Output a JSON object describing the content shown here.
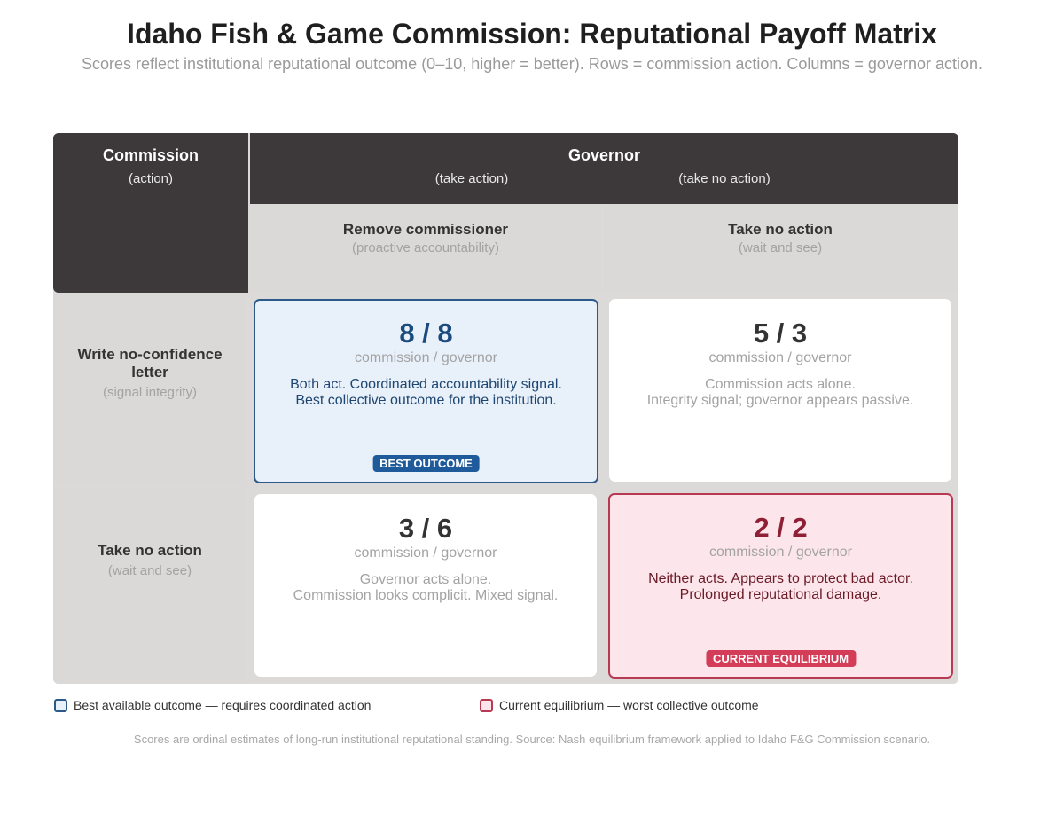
{
  "title": "Idaho Fish & Game Commission: Reputational Payoff Matrix",
  "subtitle": "Scores reflect institutional reputational outcome (0–10, higher = better). Rows = commission action. Columns = governor action.",
  "header": {
    "commission_title": "Commission",
    "commission_sub": "(action)",
    "governor_title": "Governor",
    "governor_sub_left": "(take action)",
    "governor_sub_right": "(take no action)"
  },
  "columns": [
    {
      "label": "Remove commissioner",
      "sub": "(proactive accountability)"
    },
    {
      "label": "Take no action",
      "sub": "(wait and see)"
    }
  ],
  "rows": [
    {
      "label": "Write no-confidence letter",
      "sub": "(signal integrity)"
    },
    {
      "label": "Take no action",
      "sub": "(wait and see)"
    }
  ],
  "cells": [
    {
      "score": "8 / 8",
      "label": "commission / governor",
      "desc1": "Both act. Coordinated accountability signal.",
      "desc2": "Best collective outcome for the institution.",
      "badge": "BEST OUTCOME",
      "commission": 8,
      "governor": 8
    },
    {
      "score": "5 / 3",
      "label": "commission / governor",
      "desc1": "Commission acts alone.",
      "desc2": "Integrity signal; governor appears passive.",
      "commission": 5,
      "governor": 3
    },
    {
      "score": "3 / 6",
      "label": "commission / governor",
      "desc1": "Governor acts alone.",
      "desc2": "Commission looks complicit. Mixed signal.",
      "commission": 3,
      "governor": 6
    },
    {
      "score": "2 / 2",
      "label": "commission / governor",
      "desc1": "Neither acts. Appears to protect bad actor.",
      "desc2": "Prolonged reputational damage.",
      "badge": "CURRENT EQUILIBRIUM",
      "commission": 2,
      "governor": 2
    }
  ],
  "legend": {
    "best": "Best available outcome — requires coordinated action",
    "equilibrium": "Current equilibrium — worst collective outcome"
  },
  "footnote": "Scores are ordinal estimates of long-run institutional reputational standing. Source: Nash equilibrium framework applied to Idaho F&G Commission scenario.",
  "colors": {
    "header_dark": "#3d393a",
    "best_border": "#2b5a8a",
    "best_fill": "#e8f0fa",
    "equilibrium_border": "#b83a52",
    "equilibrium_fill": "#fce6eb",
    "badge_blue": "#1f5a9a",
    "badge_red": "#d33d58"
  }
}
